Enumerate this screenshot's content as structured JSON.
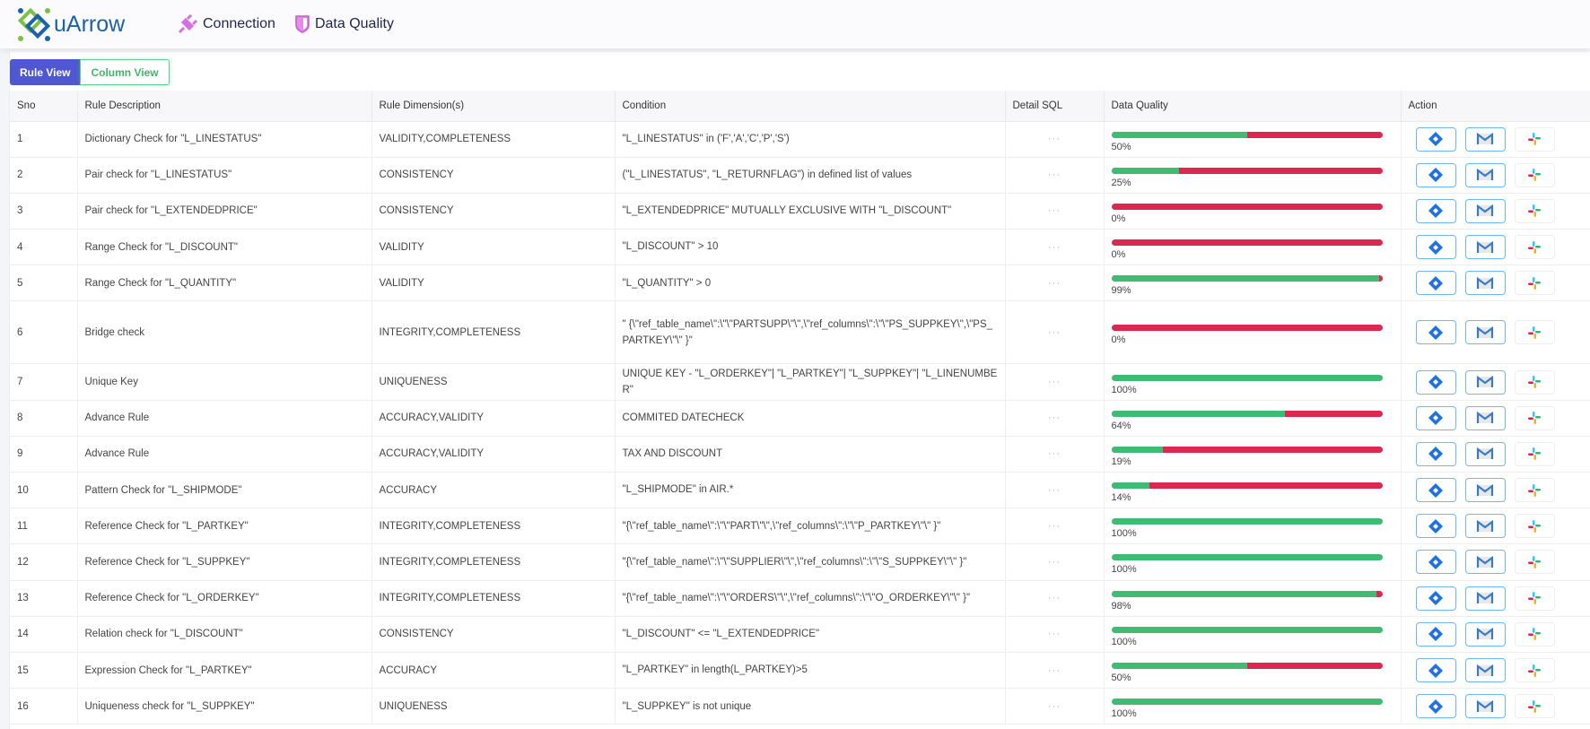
{
  "header": {
    "logo": "uArrow",
    "nav": [
      {
        "label": "Connection",
        "icon": "plug-icon"
      },
      {
        "label": "Data Quality",
        "icon": "shield-icon"
      }
    ]
  },
  "views": {
    "rule_view": "Rule View",
    "column_view": "Column View",
    "active": "Rule View"
  },
  "table": {
    "columns": [
      "Sno",
      "Rule Description",
      "Rule Dimension(s)",
      "Condition",
      "Detail SQL",
      "Data Quality",
      "Action"
    ],
    "detail_sql_label": "···",
    "colors": {
      "pass": "#3fbb74",
      "fail": "#dc2850"
    },
    "rows": [
      {
        "sno": "1",
        "desc": "Dictionary Check for \"L_LINESTATUS\"",
        "dim": "VALIDITY,COMPLETENESS",
        "cond": "\"L_LINESTATUS\" in ('F','A','C','P','S')",
        "dq": 50,
        "dq_label": "50%"
      },
      {
        "sno": "2",
        "desc": "Pair check for \"L_LINESTATUS\"",
        "dim": "CONSISTENCY",
        "cond": "(\"L_LINESTATUS\", \"L_RETURNFLAG\") in defined list of values",
        "dq": 25,
        "dq_label": "25%"
      },
      {
        "sno": "3",
        "desc": "Pair check for \"L_EXTENDEDPRICE\"",
        "dim": "CONSISTENCY",
        "cond": "\"L_EXTENDEDPRICE\" MUTUALLY EXCLUSIVE WITH \"L_DISCOUNT\"",
        "dq": 0,
        "dq_label": "0%"
      },
      {
        "sno": "4",
        "desc": "Range Check for \"L_DISCOUNT\"",
        "dim": "VALIDITY",
        "cond": "\"L_DISCOUNT\" > 10",
        "dq": 0,
        "dq_label": "0%"
      },
      {
        "sno": "5",
        "desc": "Range Check for \"L_QUANTITY\"",
        "dim": "VALIDITY",
        "cond": "\"L_QUANTITY\" > 0",
        "dq": 99,
        "dq_label": "99%"
      },
      {
        "sno": "6",
        "desc": "Bridge check",
        "dim": "INTEGRITY,COMPLETENESS",
        "cond": "\" {\\\"ref_table_name\\\":\\\"\\\"PARTSUPP\\\"\\\",\\\"ref_columns\\\":\\\"\\\"PS_SUPPKEY\\\",\\\"PS_PARTKEY\\\"\\\" }\"",
        "dq": 0,
        "dq_label": "0%"
      },
      {
        "sno": "7",
        "desc": "Unique Key",
        "dim": "UNIQUENESS",
        "cond": "UNIQUE KEY - \"L_ORDERKEY\"| \"L_PARTKEY\"| \"L_SUPPKEY\"| \"L_LINENUMBER\"",
        "dq": 100,
        "dq_label": "100%"
      },
      {
        "sno": "8",
        "desc": "Advance Rule",
        "dim": "ACCURACY,VALIDITY",
        "cond": "COMMITED DATECHECK",
        "dq": 64,
        "dq_label": "64%"
      },
      {
        "sno": "9",
        "desc": "Advance Rule",
        "dim": "ACCURACY,VALIDITY",
        "cond": "TAX AND DISCOUNT",
        "dq": 19,
        "dq_label": "19%"
      },
      {
        "sno": "10",
        "desc": "Pattern Check for \"L_SHIPMODE\"",
        "dim": "ACCURACY",
        "cond": "\"L_SHIPMODE\" in AIR.*",
        "dq": 14,
        "dq_label": "14%"
      },
      {
        "sno": "11",
        "desc": "Reference Check for \"L_PARTKEY\"",
        "dim": "INTEGRITY,COMPLETENESS",
        "cond": "\"{\\\"ref_table_name\\\":\\\"\\\"PART\\\"\\\",\\\"ref_columns\\\":\\\"\\\"P_PARTKEY\\\"\\\" }\"",
        "dq": 100,
        "dq_label": "100%"
      },
      {
        "sno": "12",
        "desc": "Reference Check for \"L_SUPPKEY\"",
        "dim": "INTEGRITY,COMPLETENESS",
        "cond": "\"{\\\"ref_table_name\\\":\\\"\\\"SUPPLIER\\\"\\\",\\\"ref_columns\\\":\\\"\\\"S_SUPPKEY\\\"\\\" }\"",
        "dq": 100,
        "dq_label": "100%"
      },
      {
        "sno": "13",
        "desc": "Reference Check for \"L_ORDERKEY\"",
        "dim": "INTEGRITY,COMPLETENESS",
        "cond": "\"{\\\"ref_table_name\\\":\\\"\\\"ORDERS\\\"\\\",\\\"ref_columns\\\":\\\"\\\"O_ORDERKEY\\\"\\\" }\"",
        "dq": 98,
        "dq_label": "98%"
      },
      {
        "sno": "14",
        "desc": "Relation check for \"L_DISCOUNT\"",
        "dim": "CONSISTENCY",
        "cond": "\"L_DISCOUNT\" <= \"L_EXTENDEDPRICE\"",
        "dq": 100,
        "dq_label": "100%"
      },
      {
        "sno": "15",
        "desc": "Expression Check for \"L_PARTKEY\"",
        "dim": "ACCURACY",
        "cond": "\"L_PARTKEY\" in length(L_PARTKEY)>5",
        "dq": 50,
        "dq_label": "50%"
      },
      {
        "sno": "16",
        "desc": "Uniqueness check for \"L_SUPPKEY\"",
        "dim": "UNIQUENESS",
        "cond": "\"L_SUPPKEY\" is not unique",
        "dq": 100,
        "dq_label": "100%"
      }
    ]
  }
}
